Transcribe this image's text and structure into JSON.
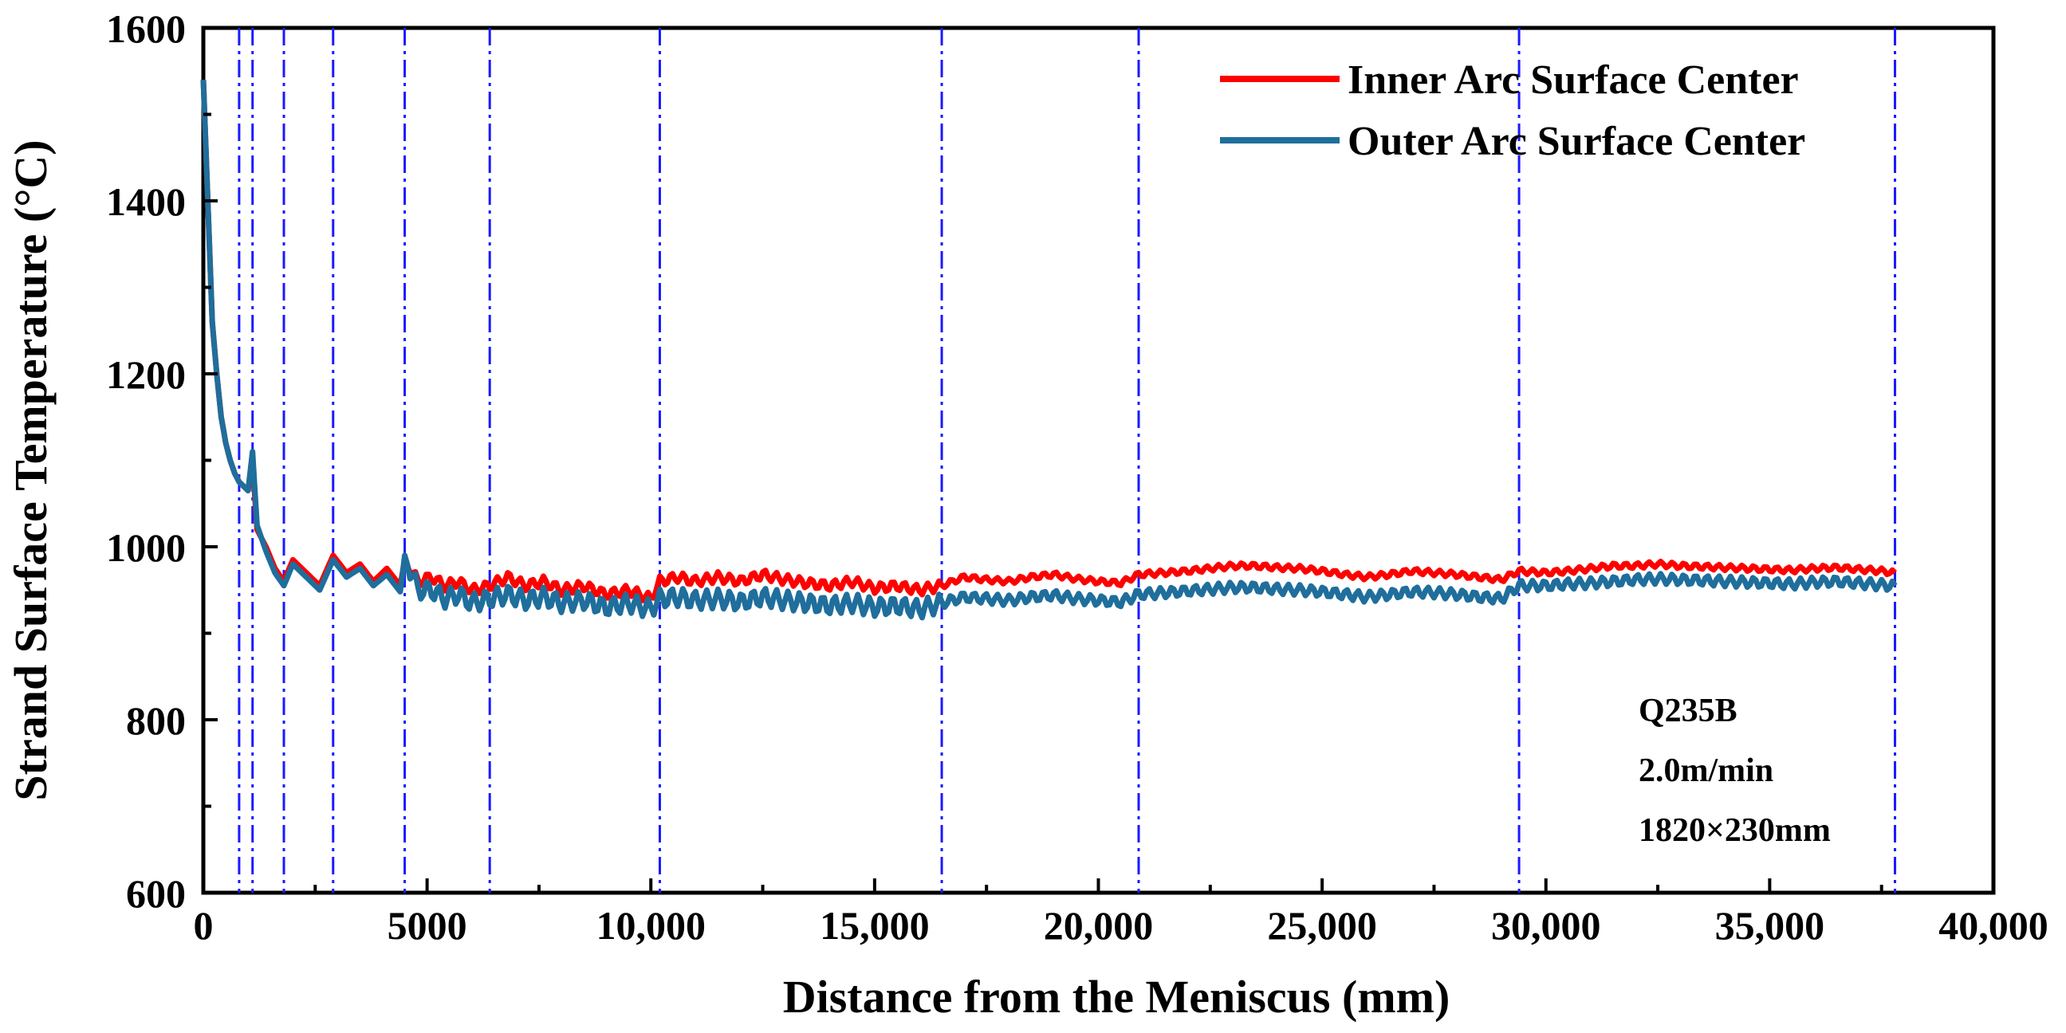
{
  "chart_data": {
    "type": "line",
    "title": "",
    "xlabel": "Distance from the Meniscus (mm)",
    "ylabel": "Strand Surface Temperature (°C)",
    "xlim": [
      0,
      40000
    ],
    "ylim": [
      600,
      1600
    ],
    "xticks": [
      0,
      5000,
      10000,
      15000,
      20000,
      25000,
      30000,
      35000,
      40000
    ],
    "xtick_labels": [
      "0",
      "5000",
      "10,000",
      "15,000",
      "20,000",
      "25,000",
      "30,000",
      "35,000",
      "40,000"
    ],
    "yticks": [
      600,
      800,
      1000,
      1200,
      1400,
      1600
    ],
    "ytick_labels": [
      "600",
      "800",
      "1000",
      "1200",
      "1400",
      "1600"
    ],
    "grid": false,
    "legend_position": "top-right",
    "zone_boundaries": [
      800,
      1100,
      1800,
      2900,
      4500,
      6400,
      10200,
      16500,
      20900,
      29400,
      37800
    ],
    "series": [
      {
        "name": "Inner Arc Surface Center",
        "color": "#ff0000",
        "x": [
          0,
          100,
          200,
          300,
          400,
          500,
          600,
          700,
          800,
          900,
          1000,
          1100,
          1200,
          1400,
          1600,
          1800,
          2000,
          2300,
          2600,
          2900,
          3200,
          3500,
          3800,
          4100,
          4400,
          4500,
          4800,
          5100,
          5400,
          5700,
          6000,
          6400,
          6800,
          7200,
          7600,
          8000,
          8500,
          9000,
          9500,
          10000,
          10200,
          10600,
          11000,
          11500,
          12000,
          12500,
          13000,
          13500,
          14000,
          14500,
          15000,
          15500,
          16000,
          16500,
          17000,
          17500,
          18000,
          18500,
          19000,
          19500,
          20000,
          20500,
          20900,
          21500,
          22000,
          22500,
          23000,
          23500,
          24000,
          24500,
          25000,
          25500,
          26000,
          26500,
          27000,
          27500,
          28000,
          28500,
          29000,
          29400,
          30000,
          30500,
          31000,
          31500,
          32000,
          32500,
          33000,
          33500,
          34000,
          34500,
          35000,
          35500,
          36000,
          36500,
          37000,
          37500,
          37800
        ],
        "values": [
          1540,
          1400,
          1260,
          1200,
          1150,
          1120,
          1100,
          1085,
          1075,
          1070,
          1065,
          1100,
          1020,
          1000,
          975,
          960,
          985,
          970,
          955,
          990,
          970,
          980,
          960,
          975,
          955,
          985,
          960,
          965,
          955,
          960,
          950,
          955,
          965,
          955,
          960,
          950,
          955,
          945,
          950,
          940,
          960,
          965,
          960,
          965,
          960,
          968,
          962,
          958,
          955,
          960,
          952,
          955,
          950,
          955,
          965,
          962,
          960,
          965,
          968,
          963,
          960,
          958,
          968,
          970,
          972,
          975,
          978,
          978,
          976,
          975,
          972,
          968,
          965,
          968,
          972,
          970,
          968,
          965,
          962,
          972,
          970,
          972,
          975,
          978,
          978,
          980,
          978,
          977,
          976,
          975,
          974,
          973,
          975,
          976,
          974,
          972,
          970
        ]
      },
      {
        "name": "Outer Arc Surface Center",
        "color": "#1f6e9c",
        "x": [
          0,
          100,
          200,
          300,
          400,
          500,
          600,
          700,
          800,
          900,
          1000,
          1100,
          1200,
          1400,
          1600,
          1800,
          2000,
          2300,
          2600,
          2900,
          3200,
          3500,
          3800,
          4100,
          4400,
          4500,
          4800,
          5100,
          5400,
          5700,
          6000,
          6400,
          6800,
          7200,
          7600,
          8000,
          8500,
          9000,
          9500,
          10000,
          10200,
          10600,
          11000,
          11500,
          12000,
          12500,
          13000,
          13500,
          14000,
          14500,
          15000,
          15500,
          16000,
          16500,
          17000,
          17500,
          18000,
          18500,
          19000,
          19500,
          20000,
          20500,
          20900,
          21500,
          22000,
          22500,
          23000,
          23500,
          24000,
          24500,
          25000,
          25500,
          26000,
          26500,
          27000,
          27500,
          28000,
          28500,
          29000,
          29400,
          30000,
          30500,
          31000,
          31500,
          32000,
          32500,
          33000,
          33500,
          34000,
          34500,
          35000,
          35500,
          36000,
          36500,
          37000,
          37500,
          37800
        ],
        "values": [
          1540,
          1400,
          1260,
          1200,
          1150,
          1120,
          1100,
          1085,
          1075,
          1070,
          1065,
          1110,
          1025,
          995,
          970,
          955,
          980,
          965,
          950,
          985,
          965,
          975,
          955,
          968,
          948,
          990,
          950,
          950,
          940,
          945,
          935,
          940,
          945,
          938,
          942,
          935,
          938,
          930,
          935,
          928,
          940,
          942,
          938,
          940,
          936,
          942,
          938,
          935,
          932,
          935,
          930,
          932,
          928,
          935,
          942,
          940,
          938,
          942,
          944,
          940,
          938,
          936,
          945,
          947,
          949,
          951,
          953,
          953,
          951,
          950,
          948,
          945,
          942,
          945,
          948,
          947,
          945,
          942,
          940,
          955,
          955,
          957,
          958,
          960,
          962,
          963,
          962,
          961,
          960,
          959,
          958,
          957,
          959,
          960,
          958,
          956,
          955
        ]
      }
    ],
    "annotations": [
      "Q235B",
      "2.0m/min",
      "1820×230mm"
    ]
  }
}
